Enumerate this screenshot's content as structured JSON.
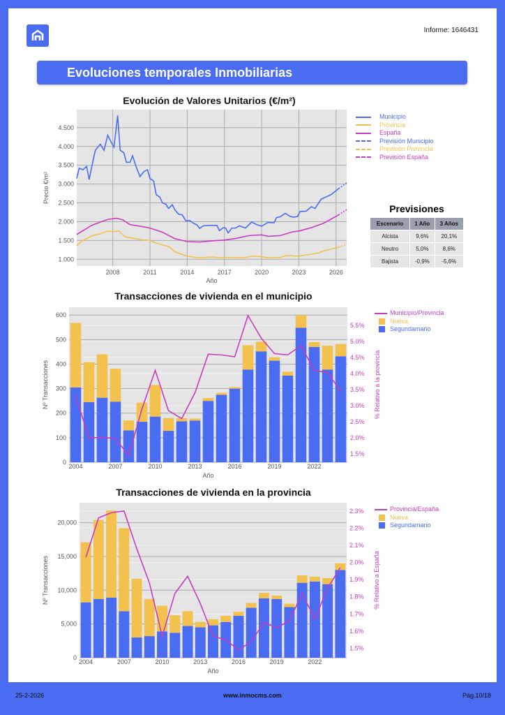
{
  "header": {
    "report_id": "Informe: 1646431",
    "banner_title": "Evoluciones temporales Inmobiliarias"
  },
  "colors": {
    "brand": "#4a6cf0",
    "municipio": "#4a6cf0",
    "provincia": "#f2c14e",
    "espana": "#c63cc0",
    "segundamano": "#4a6cf0",
    "nueva": "#f2c14e",
    "ratio": "#c63cc0"
  },
  "previsiones": {
    "title": "Previsiones",
    "headers": [
      "Escenario",
      "1 Año",
      "3 Años"
    ],
    "rows": [
      [
        "Alcista",
        "9,6%",
        "20,1%"
      ],
      [
        "Neutro",
        "5,0%",
        "8,6%"
      ],
      [
        "Bajista",
        "-0,9%",
        "-5,6%"
      ]
    ]
  },
  "chart_data": [
    {
      "type": "line",
      "title": "Evolución de Valores Unitarios (€/m²)",
      "xlabel": "Año",
      "ylabel": "Precio €/m²",
      "xlim": [
        2005.1,
        2026.85
      ],
      "ylim": [
        820,
        4980
      ],
      "xticks": [
        2008,
        2011,
        2014,
        2017,
        2020,
        2023,
        2026
      ],
      "yticks": [
        1000,
        1500,
        2000,
        2500,
        3000,
        3500,
        4000,
        4500
      ],
      "ytick_labels": [
        "1.000",
        "1.500",
        "2.000",
        "2.500",
        "3.000",
        "3.500",
        "4.000",
        "4.500"
      ],
      "grid": true,
      "legend": "right",
      "series": [
        {
          "name": "Municipio",
          "color": "#4a6cf0",
          "dash": false,
          "points": [
            [
              2005.1,
              3150
            ],
            [
              2005.3,
              3420
            ],
            [
              2005.6,
              3380
            ],
            [
              2005.9,
              3470
            ],
            [
              2006.1,
              3120
            ],
            [
              2006.4,
              3600
            ],
            [
              2006.6,
              3900
            ],
            [
              2007.0,
              4060
            ],
            [
              2007.3,
              3900
            ],
            [
              2007.6,
              4300
            ],
            [
              2007.9,
              4100
            ],
            [
              2008.1,
              3980
            ],
            [
              2008.4,
              4820
            ],
            [
              2008.6,
              3900
            ],
            [
              2008.9,
              3830
            ],
            [
              2009.1,
              3580
            ],
            [
              2009.4,
              3580
            ],
            [
              2009.6,
              3750
            ],
            [
              2009.9,
              3450
            ],
            [
              2010.2,
              3200
            ],
            [
              2010.5,
              3330
            ],
            [
              2010.8,
              3380
            ],
            [
              2011.0,
              3150
            ],
            [
              2011.3,
              3080
            ],
            [
              2011.5,
              2720
            ],
            [
              2011.8,
              2650
            ],
            [
              2012.0,
              2500
            ],
            [
              2012.3,
              2460
            ],
            [
              2012.5,
              2350
            ],
            [
              2012.8,
              2450
            ],
            [
              2013.0,
              2320
            ],
            [
              2013.3,
              2200
            ],
            [
              2013.6,
              2180
            ],
            [
              2013.9,
              2020
            ],
            [
              2014.2,
              2030
            ],
            [
              2014.5,
              1960
            ],
            [
              2014.8,
              1910
            ],
            [
              2015.0,
              1820
            ],
            [
              2015.3,
              1890
            ],
            [
              2015.8,
              1900
            ],
            [
              2016.4,
              1900
            ],
            [
              2016.6,
              1760
            ],
            [
              2016.9,
              1840
            ],
            [
              2017.1,
              1830
            ],
            [
              2017.3,
              1700
            ],
            [
              2017.6,
              1830
            ],
            [
              2017.9,
              1830
            ],
            [
              2018.2,
              1890
            ],
            [
              2018.7,
              1830
            ],
            [
              2019.2,
              1990
            ],
            [
              2019.6,
              1920
            ],
            [
              2020.0,
              1880
            ],
            [
              2020.5,
              1980
            ],
            [
              2021.0,
              1970
            ],
            [
              2021.2,
              2110
            ],
            [
              2021.5,
              2130
            ],
            [
              2021.9,
              2220
            ],
            [
              2022.3,
              2140
            ],
            [
              2022.6,
              2120
            ],
            [
              2022.9,
              2140
            ],
            [
              2023.1,
              2270
            ],
            [
              2023.6,
              2280
            ],
            [
              2024.0,
              2400
            ],
            [
              2024.3,
              2350
            ],
            [
              2024.8,
              2600
            ],
            [
              2025.2,
              2660
            ],
            [
              2025.6,
              2720
            ],
            [
              2026.2,
              2880
            ]
          ]
        },
        {
          "name": "Provincia",
          "color": "#f2c14e",
          "dash": false,
          "points": [
            [
              2005.1,
              1360
            ],
            [
              2005.5,
              1480
            ],
            [
              2006.3,
              1620
            ],
            [
              2007.0,
              1680
            ],
            [
              2007.6,
              1750
            ],
            [
              2008.0,
              1730
            ],
            [
              2008.5,
              1750
            ],
            [
              2009.0,
              1600
            ],
            [
              2009.8,
              1550
            ],
            [
              2010.5,
              1510
            ],
            [
              2011.0,
              1500
            ],
            [
              2011.5,
              1430
            ],
            [
              2012.5,
              1340
            ],
            [
              2013.0,
              1200
            ],
            [
              2013.5,
              1140
            ],
            [
              2014.0,
              1080
            ],
            [
              2015.0,
              1040
            ],
            [
              2016.0,
              1060
            ],
            [
              2016.7,
              1040
            ],
            [
              2017.5,
              1050
            ],
            [
              2018.5,
              1040
            ],
            [
              2019.2,
              1080
            ],
            [
              2020.0,
              1070
            ],
            [
              2020.5,
              1040
            ],
            [
              2021.5,
              1050
            ],
            [
              2022.0,
              1100
            ],
            [
              2023.0,
              1080
            ],
            [
              2023.5,
              1110
            ],
            [
              2024.5,
              1160
            ],
            [
              2025.2,
              1240
            ],
            [
              2026.2,
              1320
            ]
          ]
        },
        {
          "name": "España",
          "color": "#c63cc0",
          "dash": false,
          "points": [
            [
              2005.1,
              1660
            ],
            [
              2005.6,
              1760
            ],
            [
              2006.3,
              1900
            ],
            [
              2007.0,
              1990
            ],
            [
              2007.6,
              2060
            ],
            [
              2008.3,
              2090
            ],
            [
              2008.8,
              2050
            ],
            [
              2009.4,
              1920
            ],
            [
              2010.2,
              1880
            ],
            [
              2011.0,
              1830
            ],
            [
              2012.0,
              1720
            ],
            [
              2013.0,
              1550
            ],
            [
              2014.0,
              1470
            ],
            [
              2015.0,
              1460
            ],
            [
              2016.0,
              1490
            ],
            [
              2017.0,
              1510
            ],
            [
              2018.0,
              1560
            ],
            [
              2019.0,
              1630
            ],
            [
              2020.0,
              1650
            ],
            [
              2020.5,
              1610
            ],
            [
              2021.5,
              1630
            ],
            [
              2022.5,
              1730
            ],
            [
              2023.0,
              1750
            ],
            [
              2024.0,
              1840
            ],
            [
              2025.0,
              1960
            ],
            [
              2026.2,
              2180
            ]
          ]
        },
        {
          "name": "Previsión Municipio",
          "color": "#4a6cf0",
          "dash": true,
          "points": [
            [
              2026.2,
              2880
            ],
            [
              2026.85,
              3030
            ]
          ]
        },
        {
          "name": "Previsión Provincia",
          "color": "#f2c14e",
          "dash": true,
          "points": [
            [
              2026.2,
              1320
            ],
            [
              2026.85,
              1400
            ]
          ]
        },
        {
          "name": "Previsión España",
          "color": "#c63cc0",
          "dash": true,
          "points": [
            [
              2026.2,
              2180
            ],
            [
              2026.85,
              2320
            ]
          ]
        }
      ]
    },
    {
      "type": "bar",
      "title": "Transacciones de vivienda en el municipio",
      "xlabel": "Año",
      "ylabel": "Nº Transacciones",
      "y2label": "% Relativo a la provincia",
      "categories": [
        2004,
        2005,
        2006,
        2007,
        2008,
        2009,
        2010,
        2011,
        2012,
        2013,
        2014,
        2015,
        2016,
        2017,
        2018,
        2019,
        2020,
        2021,
        2022,
        2023,
        2024
      ],
      "xticks": [
        2004,
        2007,
        2010,
        2013,
        2016,
        2019,
        2022
      ],
      "ylim": [
        0,
        632
      ],
      "yticks": [
        0,
        100,
        200,
        300,
        400,
        500,
        600
      ],
      "ytick_labels": [
        "0",
        "100",
        "200",
        "300",
        "400",
        "500",
        "600"
      ],
      "y2lim": [
        1.245,
        6.06
      ],
      "y2ticks": [
        1.5,
        2,
        2.5,
        3,
        3.5,
        4,
        4.5,
        5,
        5.5
      ],
      "y2tick_labels": [
        "1.5%",
        "2.0%",
        "2.5%",
        "3.0%",
        "3.5%",
        "4.0%",
        "4.5%",
        "5.0%",
        "5.5%"
      ],
      "stacked": true,
      "legend": "right",
      "series": [
        {
          "name": "Segundamano",
          "color": "#4a6cf0",
          "values": [
            305,
            245,
            263,
            247,
            130,
            165,
            186,
            128,
            167,
            170,
            250,
            275,
            300,
            378,
            452,
            414,
            353,
            548,
            470,
            378,
            432
          ]
        },
        {
          "name": "Nueva",
          "color": "#f2c14e",
          "values": [
            263,
            163,
            177,
            134,
            40,
            78,
            129,
            52,
            13,
            8,
            12,
            8,
            6,
            99,
            40,
            14,
            16,
            52,
            20,
            97,
            50
          ]
        }
      ],
      "line": {
        "name": "Municipio/Provincia",
        "color": "#c63cc0",
        "values": [
          3.3,
          2.0,
          2.02,
          1.98,
          1.45,
          2.9,
          4.1,
          2.85,
          2.6,
          3.4,
          4.6,
          4.58,
          4.52,
          5.8,
          5.1,
          4.62,
          4.58,
          4.87,
          4.1,
          4.03,
          3.45
        ]
      }
    },
    {
      "type": "bar",
      "title": "Transacciones de vivienda en la provincia",
      "xlabel": "Año",
      "ylabel": "Nº Transacciones",
      "y2label": "% Relativo a España",
      "categories": [
        2004,
        2005,
        2006,
        2007,
        2008,
        2009,
        2010,
        2011,
        2012,
        2013,
        2014,
        2015,
        2016,
        2017,
        2018,
        2019,
        2020,
        2021,
        2022,
        2023,
        2024
      ],
      "xticks": [
        2004,
        2007,
        2010,
        2013,
        2016,
        2019,
        2022
      ],
      "ylim": [
        0,
        22960
      ],
      "yticks": [
        0,
        5000,
        10000,
        15000,
        20000
      ],
      "ytick_labels": [
        "0",
        "5,000",
        "10,000",
        "15,000",
        "20,000"
      ],
      "y2lim": [
        1.445,
        2.348
      ],
      "y2ticks": [
        1.5,
        1.6,
        1.7,
        1.8,
        1.9,
        2.0,
        2.1,
        2.2,
        2.3
      ],
      "y2tick_labels": [
        "1.5%",
        "1.6%",
        "1.7%",
        "1.8%",
        "1.9%",
        "2.0%",
        "2.1%",
        "2.2%",
        "2.3%"
      ],
      "stacked": true,
      "legend": "right",
      "series": [
        {
          "name": "Segundamano",
          "color": "#4a6cf0",
          "values": [
            8200,
            8700,
            8900,
            6900,
            3000,
            3200,
            3900,
            3700,
            4700,
            4500,
            4800,
            5300,
            6200,
            7400,
            8800,
            8700,
            7500,
            11100,
            11300,
            10900,
            13000
          ]
        },
        {
          "name": "Nueva",
          "color": "#f2c14e",
          "values": [
            8900,
            11700,
            12900,
            12300,
            8700,
            5500,
            3800,
            2600,
            2200,
            800,
            900,
            900,
            600,
            700,
            800,
            500,
            500,
            1100,
            700,
            900,
            1000
          ]
        }
      ],
      "line": {
        "name": "Provincia/España",
        "color": "#c63cc0",
        "values": [
          2.03,
          2.26,
          2.29,
          2.3,
          2.08,
          1.88,
          1.57,
          1.82,
          1.92,
          1.76,
          1.57,
          1.55,
          1.49,
          1.54,
          1.65,
          1.62,
          1.66,
          1.82,
          1.67,
          1.85,
          1.97
        ]
      }
    }
  ],
  "footer": {
    "date": "25-2-2026",
    "website": "www.inmocms.com",
    "page": "Pág.10/18"
  }
}
